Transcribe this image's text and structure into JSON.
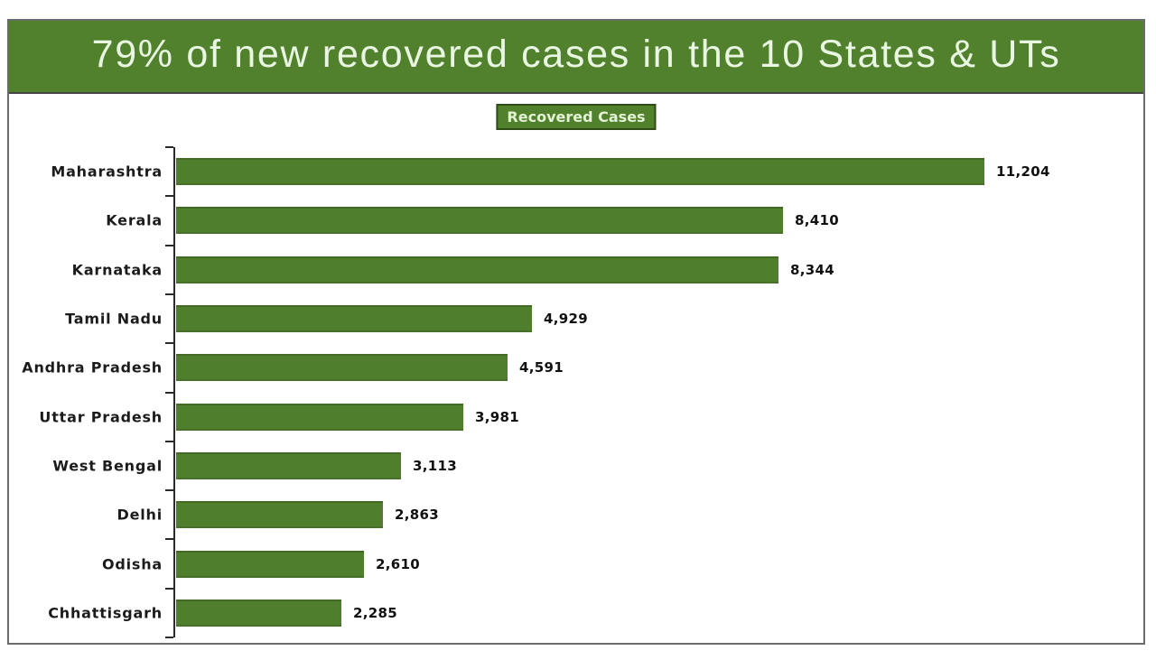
{
  "title": "79% of new recovered cases in the 10 States & UTs",
  "legend_label": "Recovered Cases",
  "colors": {
    "banner_green": "#52812e",
    "bar_green": "#4f7e2d",
    "title_text": "#e9f6e2",
    "legend_text": "#e2f2d3",
    "legend_border": "#2e4d15",
    "axis": "#2b2b2b",
    "label_text": "#1b1b1b"
  },
  "chart_data": {
    "type": "bar",
    "orientation": "horizontal",
    "title": "79% of new recovered cases in the 10 States & UTs",
    "legend": [
      "Recovered Cases"
    ],
    "legend_position": "top-center",
    "categories": [
      "Maharashtra",
      "Kerala",
      "Karnataka",
      "Tamil Nadu",
      "Andhra Pradesh",
      "Uttar Pradesh",
      "West Bengal",
      "Delhi",
      "Odisha",
      "Chhattisgarh"
    ],
    "values": [
      11204,
      8410,
      8344,
      4929,
      4591,
      3981,
      3113,
      2863,
      2610,
      2285
    ],
    "value_labels": [
      "11,204",
      "8,410",
      "8,344",
      "4,929",
      "4,591",
      "3,981",
      "3,113",
      "2,863",
      "2,610",
      "2,285"
    ],
    "xlim": [
      0,
      12000
    ],
    "grid": false
  }
}
